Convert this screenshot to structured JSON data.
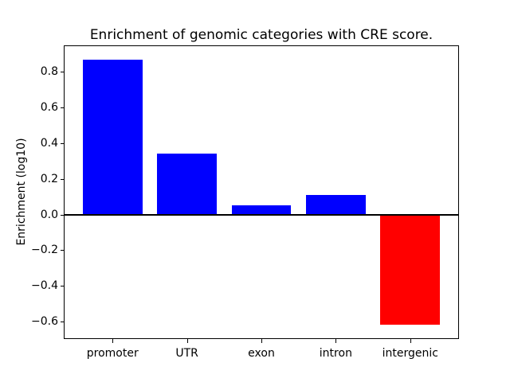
{
  "title": "Enrichment of genomic categories with CRE score.",
  "ylabel": "Enrichment (log10)",
  "chart_data": {
    "type": "bar",
    "title": "Enrichment of genomic categories with CRE score.",
    "xlabel": "",
    "ylabel": "Enrichment (log10)",
    "categories": [
      "promoter",
      "UTR",
      "exon",
      "intron",
      "intergenic"
    ],
    "values": [
      0.87,
      0.34,
      0.05,
      0.11,
      -0.62
    ],
    "bar_colors": [
      "#0000ff",
      "#0000ff",
      "#0000ff",
      "#0000ff",
      "#ff0000"
    ],
    "positive_color": "#0000ff",
    "negative_color": "#ff0000",
    "bar_width": 0.8,
    "yticks": [
      0.8,
      0.6,
      0.4,
      0.2,
      0.0,
      -0.2,
      -0.4,
      -0.6
    ],
    "ylim": [
      -0.694,
      0.945
    ],
    "xlim": [
      -0.645,
      4.645
    ],
    "zero_line": true,
    "grid": false,
    "legend": false,
    "background_color": "#ffffff"
  }
}
